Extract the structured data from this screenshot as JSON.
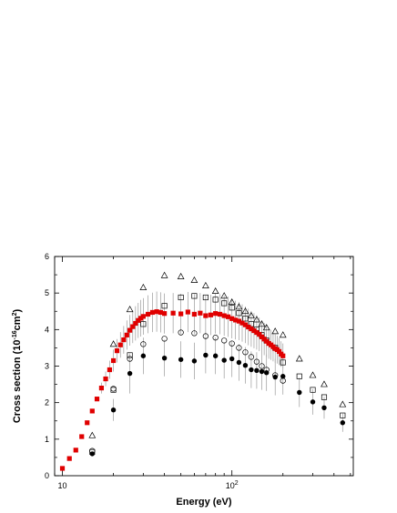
{
  "chart_data": {
    "type": "scatter",
    "xscale": "log",
    "xlim": [
      9,
      520
    ],
    "ylim": [
      0,
      6
    ],
    "xlabel": "Energy (eV)",
    "ylabel_parts": {
      "main": "Cross section (10",
      "exp1": "-16",
      "mid": "cm",
      "exp2": "2",
      "end": ")"
    },
    "x_tick_labels": [
      {
        "value": 10,
        "base": "10",
        "exp": ""
      },
      {
        "value": 100,
        "base": "10",
        "exp": "2"
      }
    ],
    "y_ticks": [
      0,
      1,
      2,
      3,
      4,
      5,
      6
    ],
    "grid": false,
    "series": [
      {
        "marker": "square-filled",
        "color": "#e00000",
        "x": [
          10,
          11,
          12,
          13,
          14,
          15,
          16,
          17,
          18,
          19,
          20,
          21,
          22,
          23,
          24,
          25,
          26,
          27,
          28,
          29,
          30,
          32,
          34,
          36,
          38,
          40,
          45,
          50,
          55,
          60,
          65,
          70,
          75,
          80,
          85,
          90,
          95,
          100,
          105,
          110,
          115,
          120,
          125,
          130,
          135,
          140,
          145,
          150,
          155,
          160,
          165,
          170,
          175,
          180,
          185,
          190,
          195,
          200
        ],
        "y": [
          0.2,
          0.47,
          0.7,
          1.07,
          1.45,
          1.77,
          2.1,
          2.4,
          2.65,
          2.9,
          3.15,
          3.42,
          3.58,
          3.72,
          3.85,
          3.98,
          4.08,
          4.17,
          4.25,
          4.31,
          4.36,
          4.42,
          4.47,
          4.49,
          4.47,
          4.44,
          4.45,
          4.43,
          4.48,
          4.42,
          4.45,
          4.38,
          4.4,
          4.44,
          4.42,
          4.38,
          4.35,
          4.3,
          4.26,
          4.23,
          4.18,
          4.13,
          4.07,
          4.02,
          3.97,
          3.92,
          3.87,
          3.8,
          3.74,
          3.68,
          3.62,
          3.58,
          3.53,
          3.48,
          3.45,
          3.4,
          3.33,
          3.28
        ],
        "err": [
          0,
          0,
          0,
          0,
          0,
          0,
          0,
          0.15,
          0.2,
          0.25,
          0.3,
          0.32,
          0.35,
          0.38,
          0.4,
          0.42,
          0.45,
          0.47,
          0.48,
          0.5,
          0.5,
          0.52,
          0.54,
          0.55,
          0.55,
          0.55,
          0.55,
          0.55,
          0.55,
          0.55,
          0.55,
          0.55,
          0.55,
          0.55,
          0.55,
          0.55,
          0.55,
          0.54,
          0.53,
          0.52,
          0.51,
          0.5,
          0.5,
          0.49,
          0.48,
          0.47,
          0.46,
          0.45,
          0.44,
          0.43,
          0.42,
          0.41,
          0.4,
          0.39,
          0.38,
          0.37,
          0.35,
          0.34
        ]
      },
      {
        "marker": "circle-filled",
        "color": "#000000",
        "x": [
          15,
          20,
          25,
          30,
          40,
          50,
          60,
          70,
          80,
          90,
          100,
          110,
          120,
          130,
          140,
          150,
          160,
          180,
          200,
          250,
          300,
          350,
          450
        ],
        "y": [
          0.6,
          1.8,
          2.8,
          3.28,
          3.22,
          3.18,
          3.14,
          3.3,
          3.28,
          3.16,
          3.2,
          3.1,
          3.02,
          2.9,
          2.88,
          2.85,
          2.82,
          2.7,
          2.72,
          2.28,
          2.02,
          1.86,
          1.45
        ],
        "err": [
          0.05,
          0.3,
          0.55,
          0.5,
          0.5,
          0.5,
          0.5,
          0.5,
          0.5,
          0.5,
          0.5,
          0.5,
          0.5,
          0.5,
          0.5,
          0.5,
          0.5,
          0.5,
          0.5,
          0.4,
          0.35,
          0.3,
          0.25
        ]
      },
      {
        "marker": "triangle-open",
        "color": "#000000",
        "x": [
          15,
          20,
          25,
          30,
          40,
          50,
          60,
          70,
          80,
          90,
          100,
          110,
          120,
          130,
          140,
          150,
          160,
          180,
          200,
          250,
          300,
          350,
          450
        ],
        "y": [
          1.1,
          3.6,
          4.55,
          5.15,
          5.48,
          5.45,
          5.35,
          5.2,
          5.05,
          4.92,
          4.75,
          4.62,
          4.5,
          4.38,
          4.27,
          4.15,
          4.05,
          3.95,
          3.85,
          3.2,
          2.75,
          2.5,
          1.95
        ],
        "err": []
      },
      {
        "marker": "square-open",
        "color": "#000000",
        "x": [
          15,
          20,
          25,
          30,
          40,
          50,
          60,
          70,
          80,
          90,
          100,
          110,
          120,
          130,
          140,
          150,
          160,
          180,
          200,
          250,
          300,
          350,
          450
        ],
        "y": [
          0.65,
          2.35,
          3.3,
          4.15,
          4.65,
          4.88,
          4.92,
          4.88,
          4.82,
          4.72,
          4.6,
          4.45,
          4.3,
          4.15,
          4.0,
          3.85,
          3.7,
          3.5,
          3.1,
          2.72,
          2.35,
          2.15,
          1.65
        ],
        "err": []
      },
      {
        "marker": "circle-open",
        "color": "#000000",
        "x": [
          15,
          20,
          25,
          30,
          40,
          50,
          60,
          70,
          80,
          90,
          100,
          110,
          120,
          130,
          140,
          150,
          160,
          180,
          200
        ],
        "y": [
          0.68,
          2.38,
          3.2,
          3.6,
          3.75,
          3.92,
          3.9,
          3.82,
          3.78,
          3.7,
          3.62,
          3.5,
          3.38,
          3.25,
          3.12,
          3.0,
          2.9,
          2.75,
          2.6
        ],
        "err": []
      }
    ]
  }
}
